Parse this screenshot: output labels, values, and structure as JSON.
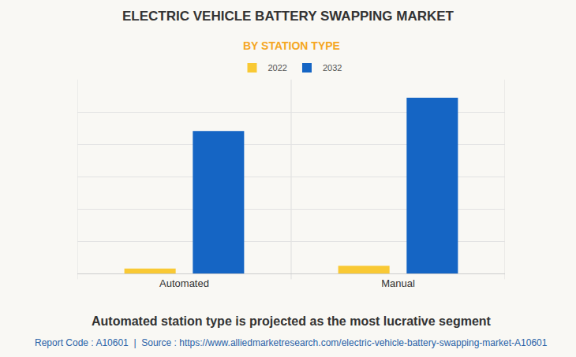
{
  "chart_data": {
    "type": "bar",
    "title": "ELECTRIC VEHICLE BATTERY SWAPPING MARKET",
    "subtitle": "BY STATION TYPE",
    "caption": "Automated station type is projected as the most lucrative segment",
    "source": "Report Code : A10601  |  Source : https://www.alliedmarketresearch.com/electric-vehicle-battery-swapping-market-A10601",
    "categories": [
      "Automated",
      "Manual"
    ],
    "series": [
      {
        "name": "2022",
        "color": "#f9c934",
        "values": [
          0.15,
          0.24
        ]
      },
      {
        "name": "2032",
        "color": "#1565c4",
        "values": [
          4.41,
          5.44
        ]
      }
    ],
    "ylim": [
      0,
      6
    ],
    "yticks": [
      0,
      1,
      2,
      3,
      4,
      5,
      6
    ],
    "grid": true,
    "legend": "top",
    "tick_labels": "x"
  }
}
